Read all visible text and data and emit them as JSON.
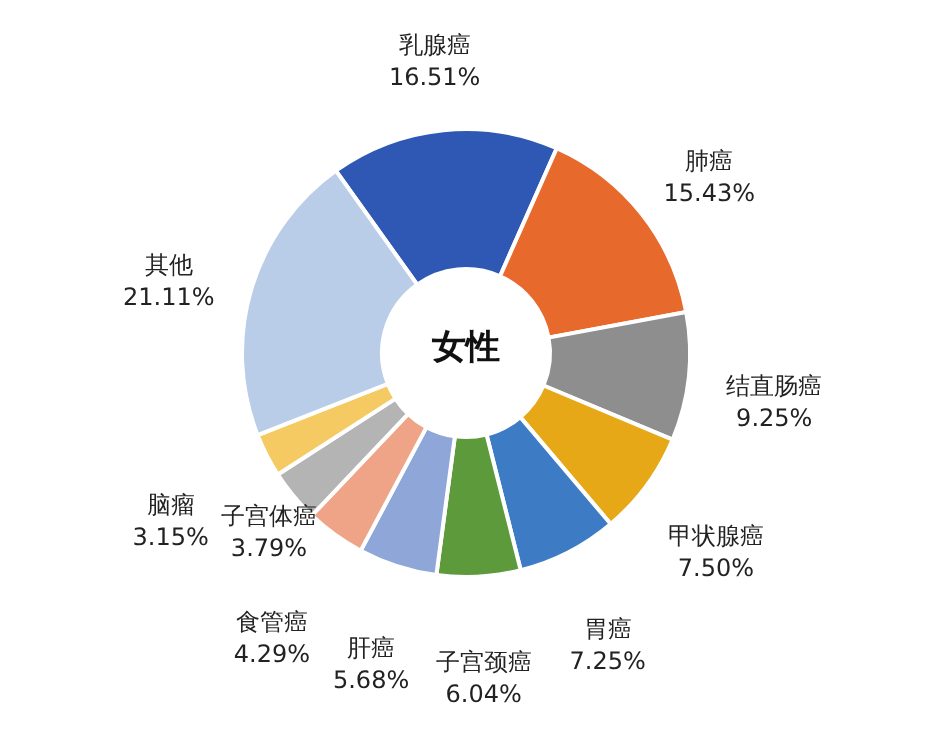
{
  "chart_data": {
    "type": "donut",
    "title": "女性",
    "categories": [
      "乳腺癌",
      "肺癌",
      "结直肠癌",
      "甲状腺癌",
      "胃癌",
      "子宫颈癌",
      "肝癌",
      "食管癌",
      "子宫体癌",
      "脑瘤",
      "其他"
    ],
    "values": [
      16.51,
      15.43,
      9.25,
      7.5,
      7.25,
      6.04,
      5.68,
      4.29,
      3.79,
      3.15,
      21.11
    ],
    "value_labels": [
      "16.51%",
      "15.43%",
      "9.25%",
      "7.50%",
      "7.25%",
      "6.04%",
      "5.68%",
      "4.29%",
      "3.79%",
      "3.15%",
      "21.11%"
    ],
    "colors": [
      "#2f58b5",
      "#e8692c",
      "#8e8e8e",
      "#e6a817",
      "#3d7cc4",
      "#5c9a3c",
      "#8fa6d9",
      "#f0a487",
      "#b4b4b4",
      "#f5ca63",
      "#b9cde9"
    ],
    "legend": false
  }
}
